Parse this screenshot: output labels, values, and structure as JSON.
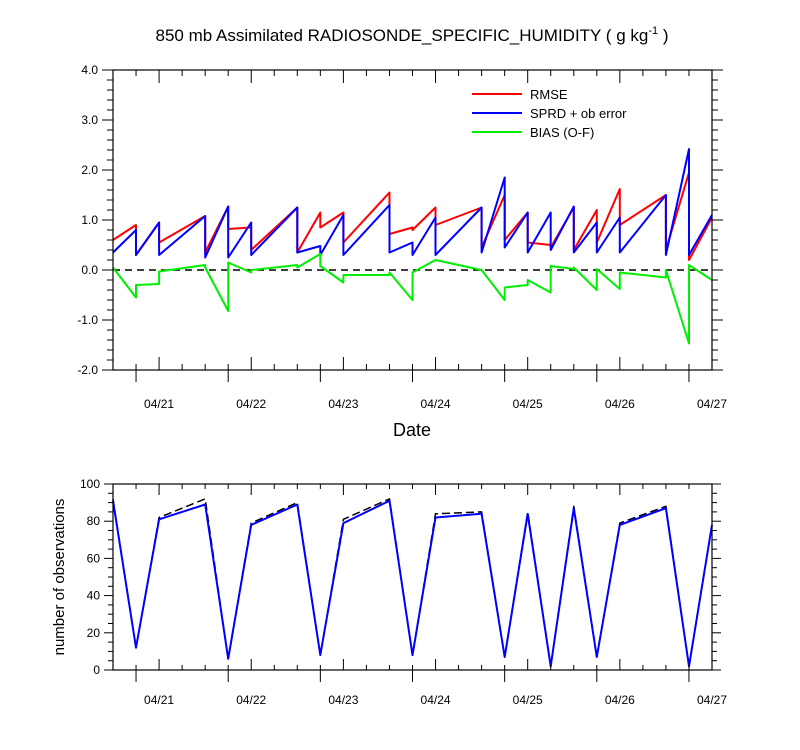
{
  "chart_data": [
    {
      "type": "line",
      "title": "850 mb Assimilated RADIOSONDE_SPECIFIC_HUMIDITY ( g kg",
      "title_superscript": "-1",
      "title_end": " )",
      "xlabel": "Date",
      "ylabel": "",
      "ylim": [
        -2.0,
        4.0
      ],
      "xlim": [
        0,
        26
      ],
      "yticks": [
        -2.0,
        -1.0,
        0.0,
        1.0,
        2.0,
        3.0,
        4.0
      ],
      "ytick_labels": [
        "-2.0",
        "-1.0",
        "0.0",
        "1.0",
        "2.0",
        "3.0",
        "4.0"
      ],
      "x_major_ticks": [
        2,
        6,
        10,
        14,
        18,
        22,
        26
      ],
      "x_tick_labels": [
        "04/21",
        "04/22",
        "04/23",
        "04/24",
        "04/25",
        "04/26",
        "04/27"
      ],
      "x": [
        0,
        1,
        1,
        2,
        2,
        4,
        4,
        5,
        5,
        6,
        6,
        8,
        8,
        9,
        9,
        10,
        10,
        12,
        12,
        13,
        13,
        14,
        14,
        16,
        16,
        17,
        17,
        18,
        18,
        19,
        19,
        20,
        20,
        21,
        21,
        22,
        22,
        24,
        24,
        25,
        25,
        26
      ],
      "series": [
        {
          "name": "RMSE",
          "color": "#ff0000",
          "values": [
            0.6,
            0.9,
            0.3,
            0.95,
            0.55,
            1.08,
            0.35,
            1.27,
            0.82,
            0.85,
            0.4,
            1.25,
            0.35,
            1.15,
            0.85,
            1.15,
            0.55,
            1.55,
            0.72,
            0.85,
            0.8,
            1.25,
            0.9,
            1.25,
            0.45,
            1.5,
            0.6,
            1.15,
            0.55,
            0.5,
            0.45,
            1.25,
            0.4,
            1.2,
            0.55,
            1.62,
            0.9,
            1.5,
            0.4,
            1.95,
            0.2,
            1.05
          ]
        },
        {
          "name": "SPRD + ob error",
          "color": "#0000ff",
          "values": [
            0.35,
            0.8,
            0.3,
            0.95,
            0.3,
            1.08,
            0.25,
            1.27,
            0.25,
            0.95,
            0.3,
            1.25,
            0.35,
            0.48,
            0.3,
            1.1,
            0.3,
            1.3,
            0.35,
            0.55,
            0.3,
            1.05,
            0.3,
            1.25,
            0.35,
            1.85,
            0.45,
            1.15,
            0.35,
            1.15,
            0.4,
            1.27,
            0.35,
            0.95,
            0.35,
            1.05,
            0.35,
            1.5,
            0.3,
            2.42,
            0.3,
            1.1
          ]
        },
        {
          "name": "BIAS (O-F)",
          "color": "#00ee00",
          "values": [
            0.05,
            -0.55,
            -0.3,
            -0.28,
            -0.03,
            0.1,
            0.05,
            -0.82,
            0.15,
            -0.05,
            0.0,
            0.1,
            0.05,
            0.32,
            0.08,
            -0.25,
            -0.1,
            -0.1,
            -0.05,
            -0.6,
            -0.05,
            0.2,
            0.2,
            0.0,
            0.0,
            -0.6,
            -0.35,
            -0.3,
            -0.2,
            -0.45,
            0.08,
            0.02,
            0.05,
            -0.4,
            0.02,
            -0.38,
            -0.05,
            -0.15,
            0.0,
            -1.47,
            0.1,
            -0.2
          ]
        }
      ],
      "reference_line": {
        "y": 0.0,
        "style": "dashed",
        "color": "#000000"
      },
      "legend": {
        "placement": "top-right",
        "entries": [
          "RMSE",
          "SPRD + ob error",
          "BIAS (O-F)"
        ]
      }
    },
    {
      "type": "line",
      "title": "",
      "xlabel": "",
      "ylabel": "number of observations",
      "ylim": [
        0,
        100
      ],
      "xlim": [
        0,
        26
      ],
      "yticks": [
        0,
        20,
        40,
        60,
        80,
        100
      ],
      "ytick_labels": [
        "0",
        "20",
        "40",
        "60",
        "80",
        "100"
      ],
      "x_major_ticks": [
        2,
        6,
        10,
        14,
        18,
        22,
        26
      ],
      "x_tick_labels": [
        "04/21",
        "04/22",
        "04/23",
        "04/24",
        "04/25",
        "04/26",
        "04/27"
      ],
      "x": [
        0,
        1,
        2,
        4,
        5,
        6,
        8,
        9,
        10,
        12,
        13,
        14,
        16,
        17,
        18,
        19,
        20,
        21,
        22,
        24,
        25,
        26
      ],
      "series": [
        {
          "color": "#0000ff",
          "style": "solid",
          "values": [
            91,
            12,
            81,
            89,
            6,
            78,
            89,
            8,
            79,
            91,
            8,
            82,
            84,
            7,
            84,
            2,
            87,
            7,
            78,
            87,
            2,
            78
          ]
        },
        {
          "color": "#000000",
          "style": "dashed",
          "values": [
            92,
            12,
            82,
            92,
            6,
            79,
            90,
            8,
            81,
            92,
            8,
            84,
            85,
            7,
            85,
            2,
            88,
            7,
            79,
            88,
            2,
            78
          ]
        }
      ],
      "legend": null
    }
  ]
}
